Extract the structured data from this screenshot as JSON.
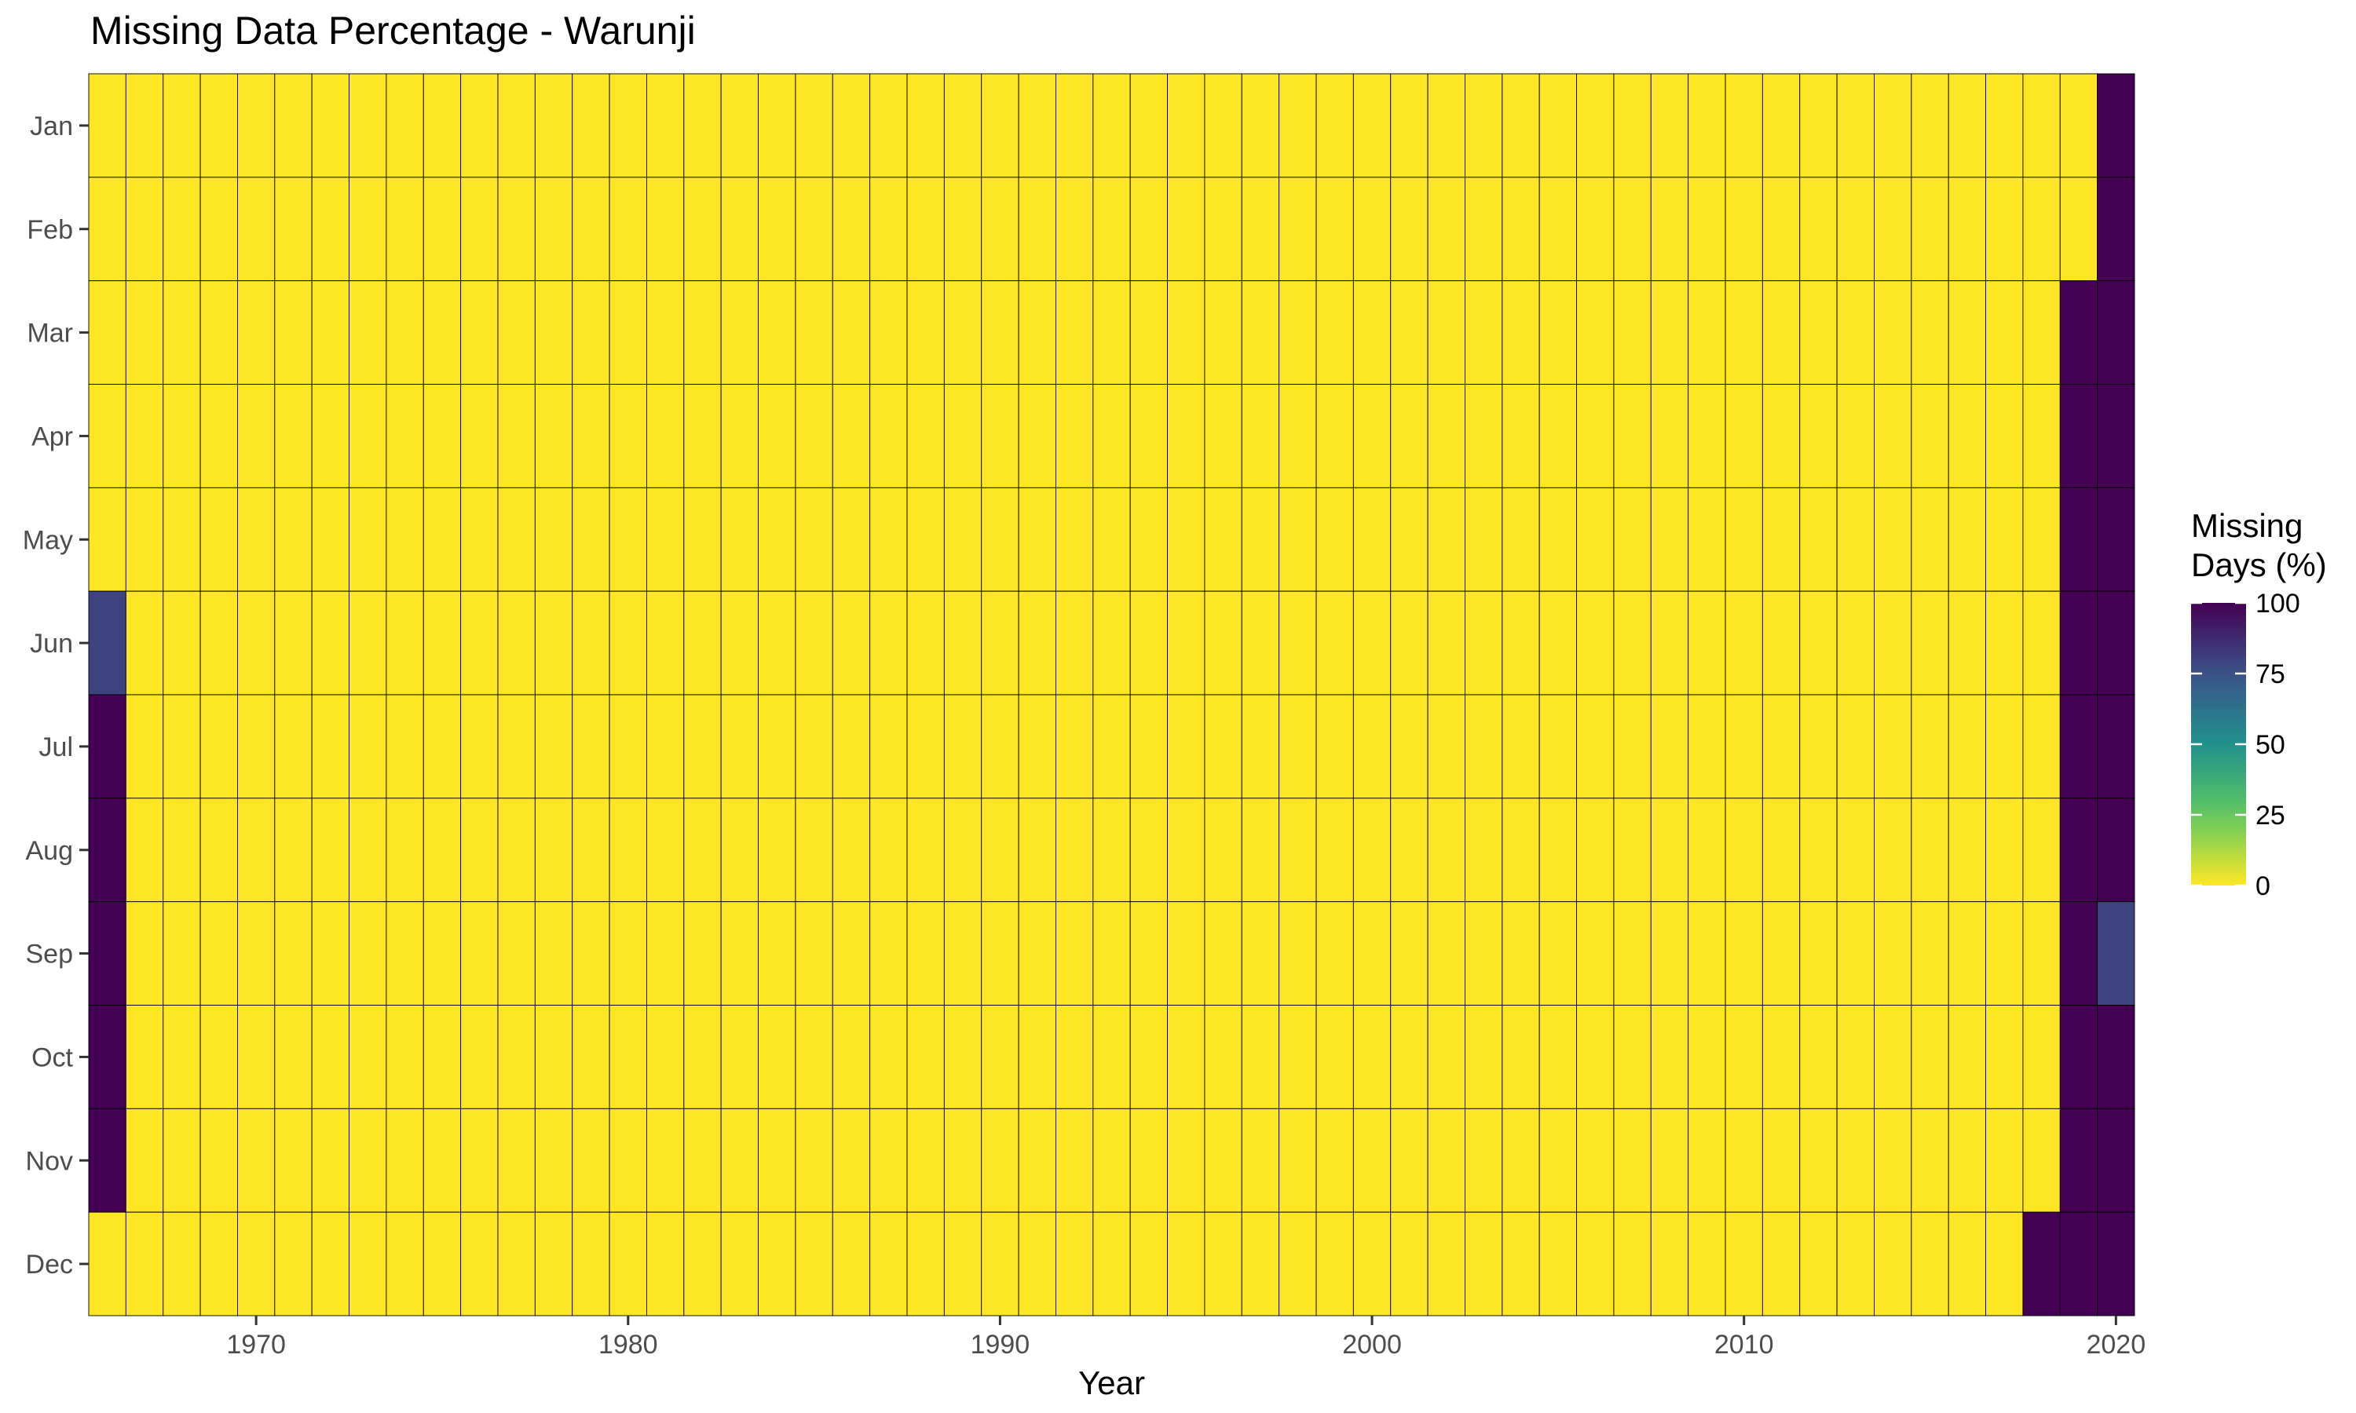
{
  "chart_data": {
    "type": "heatmap",
    "title": "Missing Data Percentage - Warunji",
    "xlabel": "Year",
    "ylabel": "",
    "x_range": [
      1966,
      2020
    ],
    "x_ticks": [
      "1970",
      "1980",
      "1990",
      "2000",
      "2010",
      "2020"
    ],
    "y_categories": [
      "Jan",
      "Feb",
      "Mar",
      "Apr",
      "May",
      "Jun",
      "Jul",
      "Aug",
      "Sep",
      "Oct",
      "Nov",
      "Dec"
    ],
    "legend": {
      "title_lines": [
        "Missing",
        "Days (%)"
      ],
      "ticks": [
        "100",
        "75",
        "50",
        "25",
        "0"
      ],
      "range": [
        0,
        100
      ],
      "colormap": "viridis-reversed",
      "placement": "right"
    },
    "default_value": 0,
    "nonzero_cells": [
      {
        "year": 1966,
        "month": "Jun",
        "value": 80
      },
      {
        "year": 1966,
        "month": "Jul",
        "value": 100
      },
      {
        "year": 1966,
        "month": "Aug",
        "value": 100
      },
      {
        "year": 1966,
        "month": "Sep",
        "value": 100
      },
      {
        "year": 1966,
        "month": "Oct",
        "value": 100
      },
      {
        "year": 1966,
        "month": "Nov",
        "value": 100
      },
      {
        "year": 2018,
        "month": "Dec",
        "value": 100
      },
      {
        "year": 2019,
        "month": "Mar",
        "value": 100
      },
      {
        "year": 2019,
        "month": "Apr",
        "value": 100
      },
      {
        "year": 2019,
        "month": "May",
        "value": 100
      },
      {
        "year": 2019,
        "month": "Jun",
        "value": 100
      },
      {
        "year": 2019,
        "month": "Jul",
        "value": 100
      },
      {
        "year": 2019,
        "month": "Aug",
        "value": 100
      },
      {
        "year": 2019,
        "month": "Sep",
        "value": 100
      },
      {
        "year": 2019,
        "month": "Oct",
        "value": 100
      },
      {
        "year": 2019,
        "month": "Nov",
        "value": 100
      },
      {
        "year": 2019,
        "month": "Dec",
        "value": 100
      },
      {
        "year": 2020,
        "month": "Jan",
        "value": 100
      },
      {
        "year": 2020,
        "month": "Feb",
        "value": 100
      },
      {
        "year": 2020,
        "month": "Mar",
        "value": 100
      },
      {
        "year": 2020,
        "month": "Apr",
        "value": 100
      },
      {
        "year": 2020,
        "month": "May",
        "value": 100
      },
      {
        "year": 2020,
        "month": "Jun",
        "value": 100
      },
      {
        "year": 2020,
        "month": "Jul",
        "value": 100
      },
      {
        "year": 2020,
        "month": "Aug",
        "value": 100
      },
      {
        "year": 2020,
        "month": "Sep",
        "value": 80
      },
      {
        "year": 2020,
        "month": "Oct",
        "value": 100
      },
      {
        "year": 2020,
        "month": "Nov",
        "value": 100
      },
      {
        "year": 2020,
        "month": "Dec",
        "value": 100
      }
    ],
    "grid": false
  }
}
